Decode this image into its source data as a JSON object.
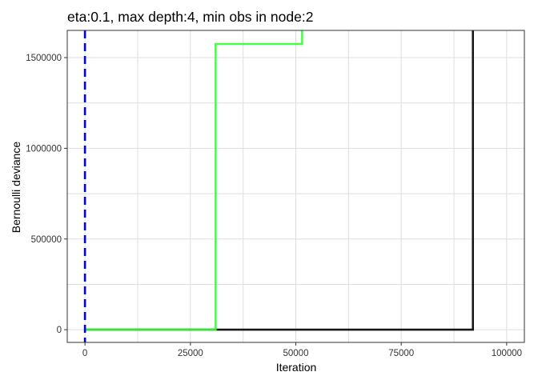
{
  "chart_data": {
    "type": "line",
    "title": "eta:0.1, max depth:4, min obs in node:2",
    "xlabel": "Iteration",
    "ylabel": "Bernoulli deviance",
    "xlim": [
      -4200,
      104200
    ],
    "ylim": [
      -70000,
      1650000
    ],
    "x_ticks": [
      0,
      25000,
      50000,
      75000,
      100000
    ],
    "x_tick_labels": [
      "0",
      "25000",
      "50000",
      "75000",
      "100000"
    ],
    "y_ticks": [
      0,
      500000,
      1000000,
      1500000
    ],
    "y_tick_labels": [
      "0",
      "500000",
      "1000000",
      "1500000"
    ],
    "grid": true,
    "legend": "none",
    "vline": {
      "x": 0,
      "color": "#0000ff",
      "style": "dashed"
    },
    "series": [
      {
        "color": "#000000",
        "x": [
          0,
          92000,
          92000,
          100000
        ],
        "y": [
          0,
          0,
          1660000,
          1660000
        ]
      },
      {
        "color": "#33ff33",
        "x": [
          0,
          31000,
          31000,
          51500,
          51500,
          100000
        ],
        "y": [
          0,
          0,
          1575000,
          1575000,
          1660000,
          1660000
        ]
      }
    ]
  }
}
